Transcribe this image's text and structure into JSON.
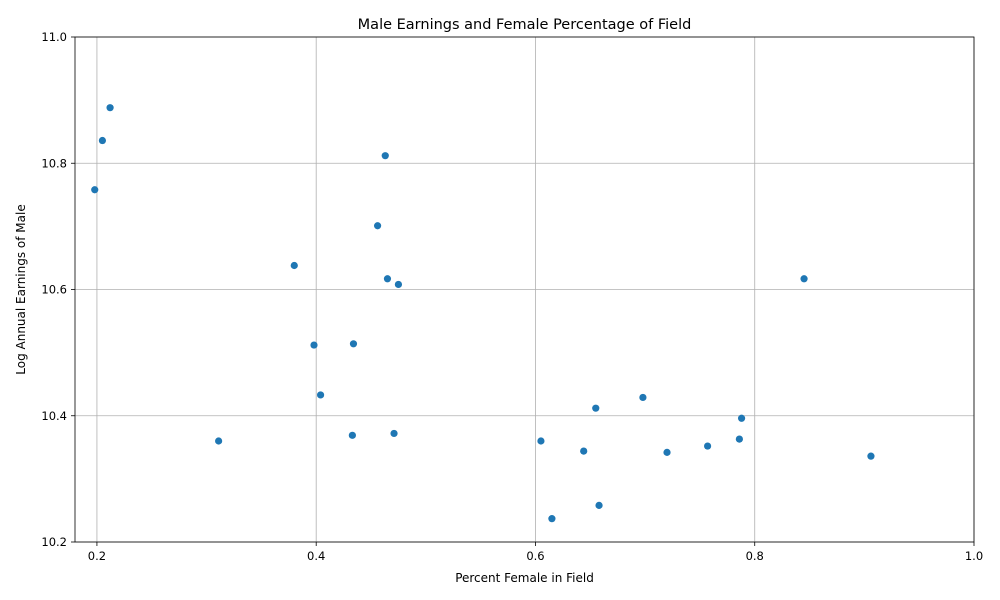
{
  "chart_data": {
    "type": "scatter",
    "title": "Male Earnings and Female Percentage of Field",
    "xlabel": "Percent Female in Field",
    "ylabel": "Log Annual Earnings of Male",
    "xlim": [
      0.18,
      1.0
    ],
    "ylim": [
      10.2,
      11.0
    ],
    "xticks": [
      0.2,
      0.4,
      0.6,
      0.8,
      1.0
    ],
    "xtick_labels": [
      "0.2",
      "0.4",
      "0.6",
      "0.8",
      "1.0"
    ],
    "yticks": [
      10.2,
      10.4,
      10.6,
      10.8,
      11.0
    ],
    "ytick_labels": [
      "10.2",
      "10.4",
      "10.6",
      "10.8",
      "11.0"
    ],
    "grid": true,
    "color": "#1f77b4",
    "x": [
      0.212,
      0.205,
      0.198,
      0.463,
      0.456,
      0.38,
      0.465,
      0.475,
      0.845,
      0.398,
      0.434,
      0.404,
      0.698,
      0.655,
      0.788,
      0.311,
      0.433,
      0.471,
      0.605,
      0.786,
      0.757,
      0.644,
      0.72,
      0.906,
      0.658,
      0.615
    ],
    "y": [
      10.888,
      10.836,
      10.758,
      10.812,
      10.701,
      10.638,
      10.617,
      10.608,
      10.617,
      10.512,
      10.514,
      10.433,
      10.429,
      10.412,
      10.396,
      10.36,
      10.369,
      10.372,
      10.36,
      10.363,
      10.352,
      10.344,
      10.342,
      10.336,
      10.258,
      10.237
    ]
  }
}
